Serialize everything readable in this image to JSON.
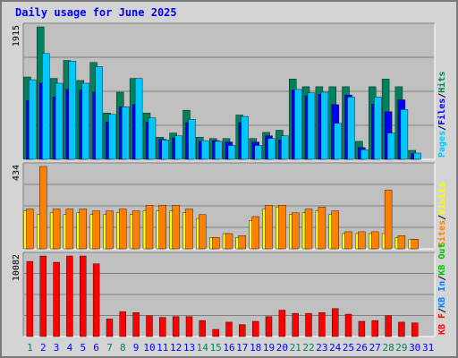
{
  "title": "Daily usage for June 2025",
  "colors": {
    "title": "#0000ff",
    "hits": "#00805c",
    "files": "#0000ff",
    "pages": "#00c8ff",
    "visits": "#ffff00",
    "sites": "#ff8000",
    "kb_in": "#0080ff",
    "kb_out": "#00c000",
    "kb_f": "#ff0000",
    "weekend_day": "#00805c",
    "weekday": "#0000ff",
    "panel_bg": "#c0c0c0",
    "grid": "#808080"
  },
  "chart_data": [
    {
      "type": "bar",
      "panel": "hits-files-pages",
      "ymax_label": "1915",
      "ylim": [
        0,
        1915
      ],
      "right_legend": [
        "Pages",
        "/",
        "Files",
        "/",
        "Hits"
      ],
      "categories": [
        "1",
        "2",
        "3",
        "4",
        "5",
        "6",
        "7",
        "8",
        "9",
        "10",
        "11",
        "12",
        "13",
        "14",
        "15",
        "16",
        "17",
        "18",
        "19",
        "20",
        "21",
        "22",
        "23",
        "24",
        "25",
        "26",
        "27",
        "28",
        "29",
        "30",
        "31"
      ],
      "series": [
        {
          "name": "Hits",
          "values": [
            1190,
            1915,
            1170,
            1430,
            1140,
            1400,
            670,
            970,
            1170,
            670,
            320,
            380,
            710,
            320,
            300,
            300,
            640,
            300,
            390,
            420,
            1160,
            1050,
            1050,
            1050,
            1050,
            260,
            1050,
            1160,
            1050,
            130,
            0
          ]
        },
        {
          "name": "Files",
          "values": [
            850,
            1100,
            900,
            1010,
            1000,
            970,
            540,
            760,
            790,
            540,
            290,
            310,
            530,
            260,
            270,
            250,
            530,
            250,
            340,
            280,
            1000,
            920,
            940,
            790,
            930,
            170,
            800,
            690,
            860,
            80,
            0
          ]
        },
        {
          "name": "Pages",
          "values": [
            1150,
            1530,
            1100,
            1420,
            1100,
            1340,
            650,
            760,
            1170,
            600,
            280,
            340,
            580,
            270,
            260,
            200,
            620,
            200,
            300,
            340,
            1010,
            960,
            970,
            520,
            900,
            140,
            900,
            380,
            720,
            90,
            0
          ]
        }
      ]
    },
    {
      "type": "bar",
      "panel": "visits-sites",
      "ymax_label": "434",
      "ylim": [
        0,
        434
      ],
      "right_legend": [
        "Sites",
        "/",
        "Visits"
      ],
      "categories": [
        "1",
        "2",
        "3",
        "4",
        "5",
        "6",
        "7",
        "8",
        "9",
        "10",
        "11",
        "12",
        "13",
        "14",
        "15",
        "16",
        "17",
        "18",
        "19",
        "20",
        "21",
        "22",
        "23",
        "24",
        "25",
        "26",
        "27",
        "28",
        "29",
        "30",
        "31"
      ],
      "series": [
        {
          "name": "Visits",
          "values": [
            200,
            180,
            190,
            180,
            190,
            180,
            180,
            190,
            180,
            200,
            200,
            200,
            190,
            160,
            60,
            80,
            60,
            150,
            210,
            220,
            180,
            190,
            200,
            180,
            80,
            80,
            80,
            80,
            60,
            50,
            0
          ]
        },
        {
          "name": "Sites",
          "values": [
            210,
            434,
            210,
            210,
            210,
            200,
            200,
            210,
            200,
            230,
            230,
            230,
            210,
            180,
            60,
            80,
            70,
            170,
            230,
            230,
            190,
            210,
            220,
            200,
            90,
            90,
            90,
            310,
            70,
            50,
            0
          ]
        }
      ]
    },
    {
      "type": "bar",
      "panel": "kbytes",
      "ymax_label": "10082",
      "ylim": [
        0,
        10082
      ],
      "right_legend": [
        "KB F",
        "/",
        "KB In",
        "/",
        "KB Out"
      ],
      "categories": [
        "1",
        "2",
        "3",
        "4",
        "5",
        "6",
        "7",
        "8",
        "9",
        "10",
        "11",
        "12",
        "13",
        "14",
        "15",
        "16",
        "17",
        "18",
        "19",
        "20",
        "21",
        "22",
        "23",
        "24",
        "25",
        "26",
        "27",
        "28",
        "29",
        "30",
        "31"
      ],
      "series": [
        {
          "name": "KB F",
          "values": [
            9400,
            10082,
            9300,
            10082,
            10082,
            9100,
            2200,
            3100,
            3000,
            2600,
            2400,
            2500,
            2500,
            2000,
            900,
            1800,
            1500,
            1900,
            2500,
            3300,
            2900,
            2900,
            3000,
            3500,
            2800,
            1900,
            2000,
            2600,
            1800,
            1700,
            0
          ]
        }
      ]
    }
  ],
  "x_labels": [
    "1",
    "2",
    "3",
    "4",
    "5",
    "6",
    "7",
    "8",
    "9",
    "10",
    "11",
    "12",
    "13",
    "14",
    "15",
    "16",
    "17",
    "18",
    "19",
    "20",
    "21",
    "22",
    "23",
    "24",
    "25",
    "26",
    "27",
    "28",
    "29",
    "30",
    "31"
  ],
  "weekend_days": [
    "1",
    "7",
    "8",
    "14",
    "15",
    "21",
    "22",
    "28",
    "29"
  ]
}
